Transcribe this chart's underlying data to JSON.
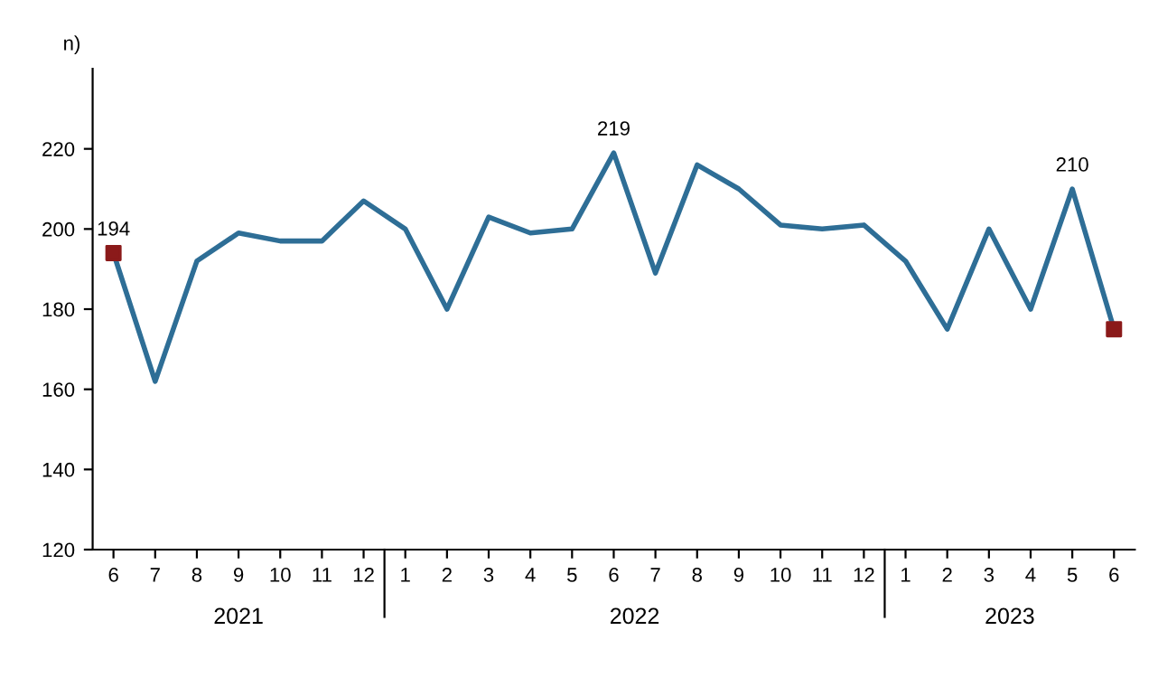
{
  "chart_data": {
    "type": "line",
    "ylabel": "n)",
    "categories": [
      "6",
      "7",
      "8",
      "9",
      "10",
      "11",
      "12",
      "1",
      "2",
      "3",
      "4",
      "5",
      "6",
      "7",
      "8",
      "9",
      "10",
      "11",
      "12",
      "1",
      "2",
      "3",
      "4",
      "5",
      "6"
    ],
    "series": [
      {
        "color": "#2e6e96",
        "values": [
          194,
          162,
          192,
          199,
          197,
          197,
          207,
          200,
          180,
          203,
          199,
          200,
          219,
          189,
          216,
          210,
          201,
          200,
          201,
          192,
          175,
          200,
          180,
          210,
          175
        ],
        "value_labels": [
          "194",
          null,
          null,
          null,
          null,
          null,
          null,
          null,
          null,
          null,
          null,
          null,
          "219",
          null,
          null,
          null,
          null,
          null,
          null,
          null,
          null,
          null,
          null,
          "210",
          null
        ]
      },
      {
        "type": "scatter",
        "color": "#8b1a1a",
        "marker": "square",
        "values": [
          194,
          null,
          null,
          null,
          null,
          null,
          null,
          null,
          null,
          null,
          null,
          null,
          null,
          null,
          null,
          null,
          null,
          null,
          null,
          null,
          null,
          null,
          null,
          null,
          175
        ]
      }
    ],
    "annotations": [
      "2021",
      "2022",
      "2023"
    ],
    "ylim": [
      120,
      240
    ],
    "yticks": [
      120,
      140,
      160,
      180,
      200,
      220
    ],
    "grid": false
  }
}
